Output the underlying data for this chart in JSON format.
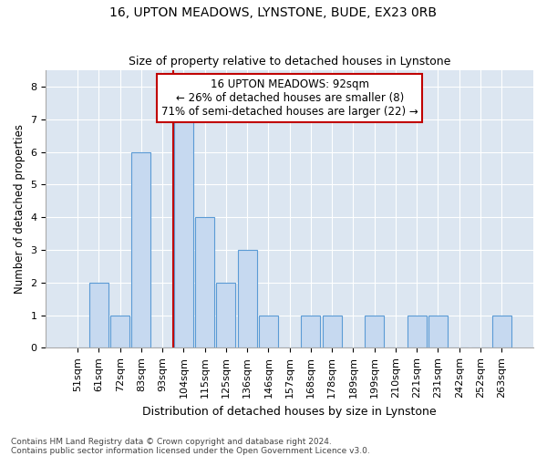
{
  "title": "16, UPTON MEADOWS, LYNSTONE, BUDE, EX23 0RB",
  "subtitle": "Size of property relative to detached houses in Lynstone",
  "xlabel": "Distribution of detached houses by size in Lynstone",
  "ylabel": "Number of detached properties",
  "bar_labels": [
    "51sqm",
    "61sqm",
    "72sqm",
    "83sqm",
    "93sqm",
    "104sqm",
    "115sqm",
    "125sqm",
    "136sqm",
    "146sqm",
    "157sqm",
    "168sqm",
    "178sqm",
    "189sqm",
    "199sqm",
    "210sqm",
    "221sqm",
    "231sqm",
    "242sqm",
    "252sqm",
    "263sqm"
  ],
  "bar_values": [
    0,
    2,
    1,
    6,
    0,
    7,
    4,
    2,
    3,
    1,
    0,
    1,
    1,
    0,
    1,
    0,
    1,
    1,
    0,
    0,
    1
  ],
  "bar_color": "#c6d9f0",
  "bar_edge_color": "#5b9bd5",
  "subject_line_color": "#c00000",
  "annotation_line1": "16 UPTON MEADOWS: 92sqm",
  "annotation_line2": "← 26% of detached houses are smaller (8)",
  "annotation_line3": "71% of semi-detached houses are larger (22) →",
  "annotation_box_color": "#ffffff",
  "annotation_box_edge": "#c00000",
  "ylim": [
    0,
    8.5
  ],
  "yticks": [
    0,
    1,
    2,
    3,
    4,
    5,
    6,
    7,
    8
  ],
  "background_color": "#dce6f1",
  "footer_line1": "Contains HM Land Registry data © Crown copyright and database right 2024.",
  "footer_line2": "Contains public sector information licensed under the Open Government Licence v3.0.",
  "title_fontsize": 10,
  "subtitle_fontsize": 9,
  "xlabel_fontsize": 9,
  "ylabel_fontsize": 8.5,
  "tick_fontsize": 8,
  "annotation_fontsize": 8.5,
  "footer_fontsize": 6.5
}
